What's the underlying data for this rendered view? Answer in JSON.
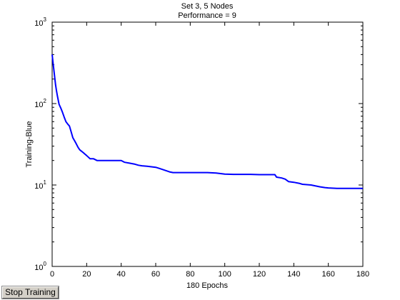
{
  "chart_data": {
    "type": "line",
    "title": [
      "Set 3, 5 Nodes",
      "Performance = 9"
    ],
    "xlabel": "180 Epochs",
    "ylabel": "Training-Blue",
    "xlim": [
      0,
      180
    ],
    "ylim": [
      1,
      1000
    ],
    "yscale": "log",
    "grid": false,
    "x_ticks": [
      0,
      20,
      40,
      60,
      80,
      100,
      120,
      140,
      160,
      180
    ],
    "x_tick_labels": [
      "0",
      "20",
      "40",
      "60",
      "80",
      "100",
      "120",
      "140",
      "160",
      "180"
    ],
    "y_ticks": [
      {
        "value": 1,
        "base": "10",
        "exp": "0"
      },
      {
        "value": 10,
        "base": "10",
        "exp": "1"
      },
      {
        "value": 100,
        "base": "10",
        "exp": "2"
      },
      {
        "value": 1000,
        "base": "10",
        "exp": "3"
      }
    ],
    "series": [
      {
        "color": "#0000ff",
        "x": [
          0,
          0.5,
          1,
          1.5,
          2,
          2.5,
          3,
          4,
          5,
          6,
          7,
          8,
          9,
          10,
          11,
          12,
          13,
          14,
          15,
          16,
          17,
          18,
          19,
          20,
          22,
          23,
          24,
          26,
          28,
          30,
          32,
          34,
          36,
          38,
          40,
          42,
          45,
          48,
          50,
          52,
          55,
          60,
          62,
          64,
          66,
          68,
          70,
          75,
          80,
          85,
          90,
          95,
          100,
          105,
          110,
          115,
          120,
          125,
          129,
          130,
          133,
          135,
          137,
          140,
          143,
          145,
          150,
          152,
          155,
          158,
          160,
          165,
          170,
          175,
          180
        ],
        "y": [
          400,
          320,
          260,
          210,
          170,
          145,
          125,
          98,
          88,
          78,
          68,
          60,
          56,
          53,
          45,
          38,
          35,
          32,
          29,
          27,
          26,
          25,
          24,
          23,
          21,
          21,
          21,
          20,
          20,
          20,
          20,
          20,
          20,
          20,
          20,
          19,
          18.5,
          18,
          17.5,
          17.2,
          17,
          16.5,
          16,
          15.5,
          15,
          14.5,
          14.2,
          14.2,
          14.2,
          14.2,
          14.2,
          14,
          13.6,
          13.5,
          13.5,
          13.5,
          13.4,
          13.4,
          13.4,
          12.5,
          12.2,
          11.8,
          11,
          10.8,
          10.5,
          10.2,
          10,
          9.8,
          9.5,
          9.3,
          9.2,
          9.1,
          9.1,
          9.1,
          9.1
        ]
      }
    ]
  },
  "controls": {
    "stop_label": "Stop Training"
  }
}
